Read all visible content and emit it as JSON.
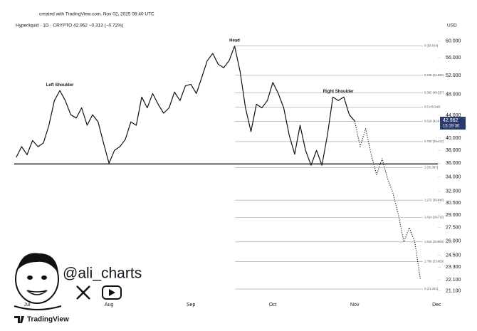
{
  "chart_data": {
    "type": "line",
    "created": "created with TradingView.com, Nov 02, 2025 08:40 UTC",
    "legend": "Hyperliquid · 1D · CRYPTO  42.962  −0.313 (−0.72%)",
    "currency": "USD",
    "brand": "TradingView",
    "handle": "@ali_charts",
    "log_scale": true,
    "ylim": [
      20.4,
      65.2
    ],
    "yticks": [
      {
        "value": 60,
        "label": "60.000"
      },
      {
        "value": 56,
        "label": "56.000"
      },
      {
        "value": 52,
        "label": "52.000"
      },
      {
        "value": 48,
        "label": "48.000"
      },
      {
        "value": 44,
        "label": "44.000"
      },
      {
        "value": 40,
        "label": "40.000"
      },
      {
        "value": 38,
        "label": "38.000"
      },
      {
        "value": 36,
        "label": "36.000"
      },
      {
        "value": 34,
        "label": "34.000"
      },
      {
        "value": 32,
        "label": "32.000"
      },
      {
        "value": 30.5,
        "label": "30.500"
      },
      {
        "value": 29,
        "label": "29.000"
      },
      {
        "value": 27.5,
        "label": "27.500"
      },
      {
        "value": 26,
        "label": "26.000"
      },
      {
        "value": 24.5,
        "label": "24.500"
      },
      {
        "value": 23.3,
        "label": "23.300"
      },
      {
        "value": 22.1,
        "label": "22.100"
      },
      {
        "value": 21.1,
        "label": "21.100"
      }
    ],
    "last_price": {
      "value": 42.962,
      "label": "42.962"
    },
    "countdown": "15:19:30",
    "categories": [
      null,
      null,
      "Jul",
      null,
      null,
      null,
      null,
      null,
      null,
      null,
      null,
      null,
      null,
      null,
      null,
      null,
      null,
      "Aug",
      null,
      null,
      null,
      null,
      null,
      null,
      null,
      null,
      null,
      null,
      null,
      null,
      null,
      null,
      "Sep",
      null,
      null,
      null,
      null,
      null,
      null,
      null,
      null,
      null,
      null,
      null,
      null,
      null,
      null,
      "Oct",
      null,
      null,
      null,
      null,
      null,
      null,
      null,
      null,
      null,
      null,
      null,
      null,
      null,
      null,
      "Nov",
      null,
      null,
      null,
      null,
      null,
      null,
      null,
      null,
      null,
      null,
      null,
      null,
      null,
      null,
      "Dec"
    ],
    "series": [
      {
        "name": "Price",
        "color": "#111111",
        "style": "solid",
        "values": [
          36.9,
          38.6,
          37.3,
          39.6,
          38.6,
          39.2,
          42.2,
          46.8,
          48.8,
          46.8,
          44.1,
          43.5,
          45.4,
          42.2,
          44.1,
          42.8,
          39.2,
          36.0,
          38.0,
          38.6,
          39.8,
          42.8,
          42.2,
          47.5,
          45.4,
          48.2,
          46.1,
          44.4,
          45.4,
          48.5,
          46.8,
          49.8,
          50.1,
          48.2,
          51.6,
          55.3,
          57.0,
          54.5,
          53.7,
          55.3,
          58.8,
          52.9,
          45.4,
          41.1,
          46.1,
          45.4,
          46.8,
          50.5,
          48.2,
          45.4,
          40.5,
          37.4,
          42.2,
          38.0,
          35.7,
          38.0,
          35.7,
          40.5,
          47.5,
          46.8,
          47.5,
          44.1,
          42.962,
          null,
          null,
          null,
          null,
          null,
          null,
          null,
          null,
          null,
          null,
          null,
          null,
          null,
          null,
          null
        ]
      },
      {
        "name": "Projection",
        "color": "#111111",
        "style": "dotted",
        "values": [
          null,
          null,
          null,
          null,
          null,
          null,
          null,
          null,
          null,
          null,
          null,
          null,
          null,
          null,
          null,
          null,
          null,
          null,
          null,
          null,
          null,
          null,
          null,
          null,
          null,
          null,
          null,
          null,
          null,
          null,
          null,
          null,
          null,
          null,
          null,
          null,
          null,
          null,
          null,
          null,
          null,
          null,
          null,
          null,
          null,
          null,
          null,
          null,
          null,
          null,
          null,
          null,
          null,
          null,
          null,
          null,
          null,
          null,
          null,
          null,
          null,
          null,
          42.962,
          38.6,
          41.6,
          37.4,
          34.3,
          36.7,
          33.8,
          31.8,
          29.0,
          25.9,
          27.5,
          25.9,
          22.2,
          null,
          null,
          null
        ]
      }
    ],
    "neckline": 35.9,
    "fib_levels": [
      {
        "value": 58.814,
        "label": "0 (58.814)"
      },
      {
        "value": 52.033,
        "label": "0.236 (52.033)"
      },
      {
        "value": 48.337,
        "label": "0.382 (48.337)"
      },
      {
        "value": 45.543,
        "label": "0.5 (45.543)"
      },
      {
        "value": 42.919,
        "label": "0.618 (42.919)"
      },
      {
        "value": 39.412,
        "label": "0.786 (39.412)"
      },
      {
        "value": 35.367,
        "label": "1 (35.367)"
      },
      {
        "value": 30.848,
        "label": "1.272 (30.848)"
      },
      {
        "value": 28.715,
        "label": "1.414 (28.715)"
      },
      {
        "value": 25.908,
        "label": "1.618 (25.908)"
      },
      {
        "value": 23.855,
        "label": "1.786 (23.855)"
      },
      {
        "value": 21.264,
        "label": "2 (21.264)"
      }
    ],
    "annotations": [
      {
        "text": "Left Shoulder",
        "index": 8,
        "value": 48.8
      },
      {
        "text": "Head",
        "index": 40,
        "value": 58.8
      },
      {
        "text": "Right Shoulder",
        "index": 59,
        "value": 47.5
      }
    ]
  }
}
